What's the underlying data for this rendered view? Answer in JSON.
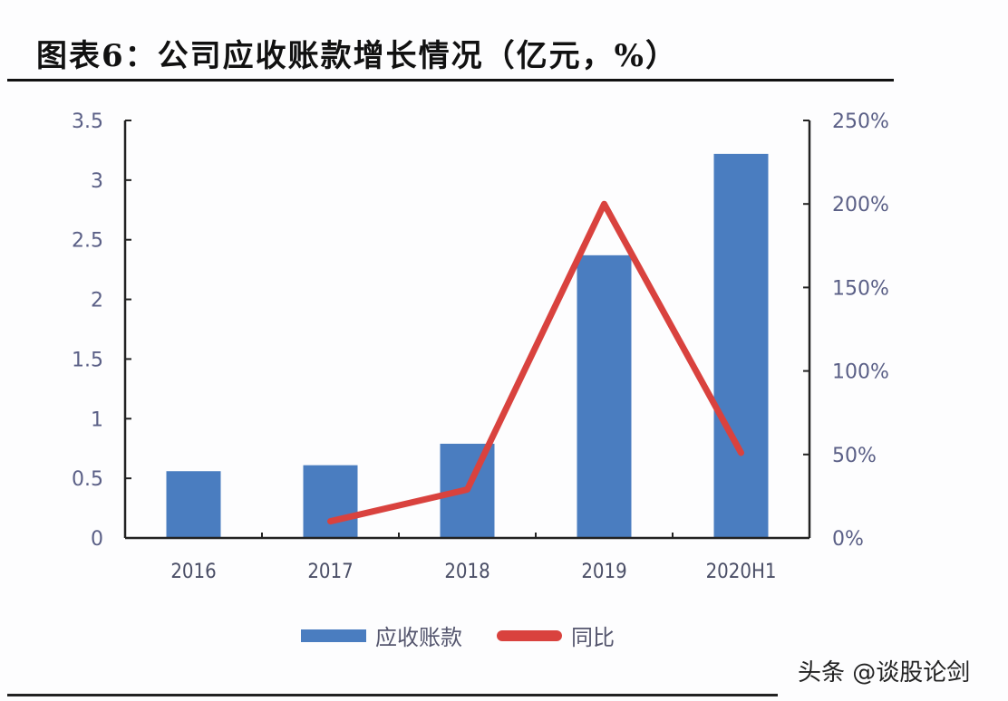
{
  "title": "图表6：公司应收账款增长情况（亿元，%）",
  "watermark": "头条 @谈股论剑",
  "legend": {
    "bar_label": "应收账款",
    "line_label": "同比"
  },
  "colors": {
    "bar": "#4a7dc0",
    "line": "#d9423e",
    "axis": "#222222",
    "tick_text": "#5a5f86"
  },
  "axes": {
    "left_ticks": [
      "0",
      "0.5",
      "1",
      "1.5",
      "2",
      "2.5",
      "3",
      "3.5"
    ],
    "right_ticks": [
      "0%",
      "50%",
      "100%",
      "150%",
      "200%",
      "250%"
    ],
    "x_ticks": [
      "2016",
      "2017",
      "2018",
      "2019",
      "2020H1"
    ]
  },
  "chart_data": {
    "type": "bar",
    "title": "图表6：公司应收账款增长情况（亿元，%）",
    "categories": [
      "2016",
      "2017",
      "2018",
      "2019",
      "2020H1"
    ],
    "series": [
      {
        "name": "应收账款",
        "type": "bar",
        "axis": "left",
        "unit": "亿元",
        "values": [
          0.56,
          0.61,
          0.79,
          2.37,
          3.22
        ]
      },
      {
        "name": "同比",
        "type": "line",
        "axis": "right",
        "unit": "%",
        "values": [
          null,
          10,
          29,
          200,
          51
        ]
      }
    ],
    "xlabel": "",
    "ylabel": "亿元",
    "y2label": "%",
    "ylim": [
      0,
      3.5
    ],
    "y2lim": [
      0,
      250
    ],
    "grid": false,
    "legend_position": "bottom"
  }
}
